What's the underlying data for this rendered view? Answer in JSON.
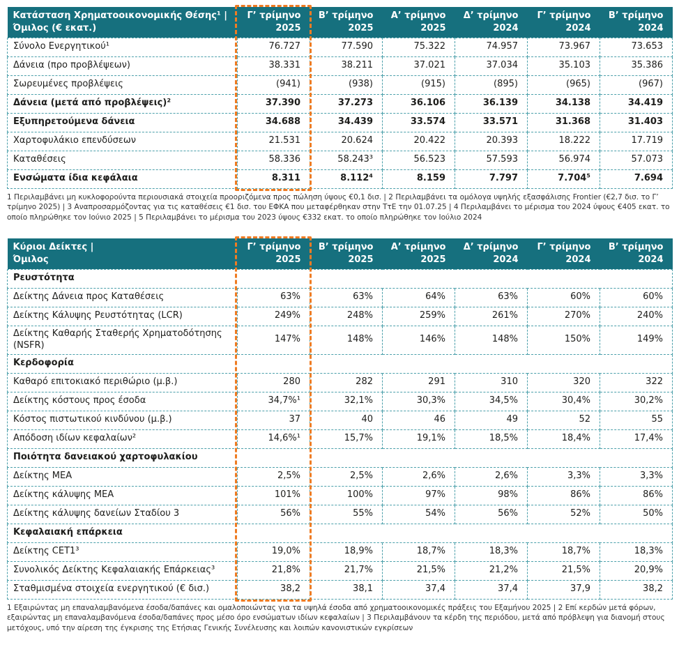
{
  "colors": {
    "header_bg": "#16707e",
    "grid": "#4a9faa",
    "highlight": "#ef7c23",
    "text": "#1d1d1b"
  },
  "table1": {
    "title_line1": "Κατάσταση Χρηματοοικονομικής Θέσης¹ |",
    "title_line2": "Όμιλος (€ εκατ.)",
    "columns": [
      {
        "line1": "Γ’ τρίμηνο",
        "line2": "2025"
      },
      {
        "line1": "Β’ τρίμηνο",
        "line2": "2025"
      },
      {
        "line1": "Α’ τρίμηνο",
        "line2": "2025"
      },
      {
        "line1": "Δ’ τρίμηνο",
        "line2": "2024"
      },
      {
        "line1": "Γ’ τρίμηνο",
        "line2": "2024"
      },
      {
        "line1": "Β’ τρίμηνο",
        "line2": "2024"
      }
    ],
    "rows": [
      {
        "label": "Σύνολο Ενεργητικού¹",
        "bold": false,
        "values": [
          "76.727",
          "77.590",
          "75.322",
          "74.957",
          "73.967",
          "73.653"
        ]
      },
      {
        "label": "Δάνεια (προ προβλέψεων)",
        "bold": false,
        "values": [
          "38.331",
          "38.211",
          "37.021",
          "37.034",
          "35.103",
          "35.386"
        ]
      },
      {
        "label": "Σωρευμένες προβλέψεις",
        "bold": false,
        "values": [
          "(941)",
          "(938)",
          "(915)",
          "(895)",
          "(965)",
          "(967)"
        ]
      },
      {
        "label": "Δάνεια (μετά από προβλέψεις)²",
        "bold": true,
        "values": [
          "37.390",
          "37.273",
          "36.106",
          "36.139",
          "34.138",
          "34.419"
        ]
      },
      {
        "label": "Εξυπηρετούμενα δάνεια",
        "bold": true,
        "values": [
          "34.688",
          "34.439",
          "33.574",
          "33.571",
          "31.368",
          "31.403"
        ]
      },
      {
        "label": "Χαρτοφυλάκιο επενδύσεων",
        "bold": false,
        "values": [
          "21.531",
          "20.624",
          "20.422",
          "20.393",
          "18.222",
          "17.719"
        ]
      },
      {
        "label": "Καταθέσεις",
        "bold": false,
        "values": [
          "58.336",
          "58.243³",
          "56.523",
          "57.593",
          "56.974",
          "57.073"
        ]
      },
      {
        "label": "Ενσώματα ίδια κεφάλαια",
        "bold": true,
        "values": [
          "8.311",
          "8.112⁴",
          "8.159",
          "7.797",
          "7.704⁵",
          "7.694"
        ]
      }
    ],
    "footnotes": "1 Περιλαμβάνει μη κυκλοφορούντα περιουσιακά στοιχεία προοριζόμενα προς πώληση ύψους €0,1 δισ. | 2 Περιλαμβάνει τα ομόλογα υψηλής εξασφάλισης Frontier (€2,7 δισ. το Γ’ τρίμηνο 2025) | 3 Αναπροσαρμόζοντας για τις καταθέσεις €1 δισ. του ΕΦΚΑ που μεταφέρθηκαν στην ΤτΕ την 01.07.25 | 4 Περιλαμβάνει το μέρισμα του 2024 ύψους €405 εκατ. το οποίο πληρώθηκε τον Ιούνιο 2025 | 5 Περιλαμβάνει το μέρισμα του 2023 ύψους €332 εκατ. το οποίο πληρώθηκε τον Ιούλιο 2024"
  },
  "table2": {
    "title_line1": "Κύριοι Δείκτες |",
    "title_line2": "Όμιλος",
    "columns": [
      {
        "line1": "Γ’ τρίμηνο",
        "line2": "2025"
      },
      {
        "line1": "Β’ τρίμηνο",
        "line2": "2025"
      },
      {
        "line1": "Α’ τρίμηνο",
        "line2": "2025"
      },
      {
        "line1": "Δ’ τρίμηνο",
        "line2": "2024"
      },
      {
        "line1": "Γ’ τρίμηνο",
        "line2": "2024"
      },
      {
        "line1": "Β’ τρίμηνο",
        "line2": "2024"
      }
    ],
    "rows": [
      {
        "section": "Ρευστότητα"
      },
      {
        "label": "Δείκτης Δάνεια προς Καταθέσεις",
        "values": [
          "63%",
          "63%",
          "64%",
          "63%",
          "60%",
          "60%"
        ]
      },
      {
        "label": "Δείκτης Κάλυψης Ρευστότητας (LCR)",
        "values": [
          "249%",
          "248%",
          "259%",
          "261%",
          "270%",
          "240%"
        ]
      },
      {
        "label": "Δείκτης Καθαρής Σταθερής Χρηματοδότησης (NSFR)",
        "values": [
          "147%",
          "148%",
          "146%",
          "148%",
          "150%",
          "149%"
        ]
      },
      {
        "section": "Κερδοφορία"
      },
      {
        "label": "Καθαρό επιτοκιακό περιθώριο (μ.β.)",
        "values": [
          "280",
          "282",
          "291",
          "310",
          "320",
          "322"
        ]
      },
      {
        "label": "Δείκτης κόστους προς έσοδα",
        "values": [
          "34,7%¹",
          "32,1%",
          "30,3%",
          "34,5%",
          "30,4%",
          "30,2%"
        ]
      },
      {
        "label": "Κόστος πιστωτικού κινδύνου (μ.β.)",
        "values": [
          "37",
          "40",
          "46",
          "49",
          "52",
          "55"
        ]
      },
      {
        "label": "Απόδοση ιδίων κεφαλαίων²",
        "values": [
          "14,6%¹",
          "15,7%",
          "19,1%",
          "18,5%",
          "18,4%",
          "17,4%"
        ]
      },
      {
        "section": "Ποιότητα δανειακού χαρτοφυλακίου"
      },
      {
        "label": "Δείκτης ΜΕΑ",
        "values": [
          "2,5%",
          "2,5%",
          "2,6%",
          "2,6%",
          "3,3%",
          "3,3%"
        ]
      },
      {
        "label": "Δείκτης κάλυψης ΜΕΑ",
        "values": [
          "101%",
          "100%",
          "97%",
          "98%",
          "86%",
          "86%"
        ]
      },
      {
        "label": "Δείκτης κάλυψης δανείων Σταδίου 3",
        "values": [
          "56%",
          "55%",
          "54%",
          "56%",
          "52%",
          "50%"
        ]
      },
      {
        "section": "Κεφαλαιακή επάρκεια"
      },
      {
        "label": "Δείκτης CET1³",
        "values": [
          "19,0%",
          "18,9%",
          "18,7%",
          "18,3%",
          "18,7%",
          "18,3%"
        ]
      },
      {
        "label": "Συνολικός Δείκτης Κεφαλαιακής Επάρκειας³",
        "values": [
          "21,8%",
          "21,7%",
          "21,5%",
          "21,2%",
          "21,5%",
          "20,9%"
        ]
      },
      {
        "label": "Σταθμισμένα στοιχεία ενεργητικού (€ δισ.)",
        "values": [
          "38,2",
          "38,1",
          "37,4",
          "37,4",
          "37,9",
          "38,2"
        ]
      }
    ],
    "footnotes": "1 Εξαιρώντας μη επαναλαμβανόμενα έσοδα/δαπάνες και ομαλοποιώντας για τα υψηλά έσοδα από χρηματοοικονομικές πράξεις του Εξαμήνου 2025 | 2 Επί κερδών μετά φόρων, εξαιρώντας μη επαναλαμβανόμενα έσοδα/δαπάνες προς μέσο όρο ενσώματων ιδίων κεφαλαίων | 3 Περιλαμβάνουν τα κέρδη της περιόδου, μετά από πρόβλεψη για διανομή στους μετόχους, υπό την αίρεση της έγκρισης της Ετήσιας Γενικής Συνέλευσης και λοιπών κανονιστικών εγκρίσεων"
  }
}
